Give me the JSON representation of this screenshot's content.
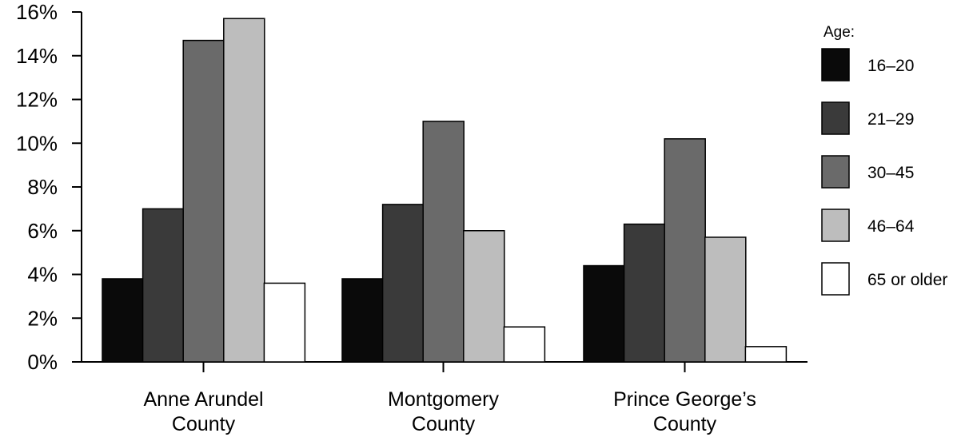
{
  "chart_data": {
    "type": "bar",
    "ylim": [
      0,
      16
    ],
    "yticks": [
      "0%",
      "2%",
      "4%",
      "6%",
      "8%",
      "10%",
      "12%",
      "14%",
      "16%"
    ],
    "categories": [
      [
        "Anne Arundel",
        "County"
      ],
      [
        "Montgomery",
        "County"
      ],
      [
        "Prince George’s",
        "County"
      ]
    ],
    "legend": {
      "title": "Age:",
      "placement": "right"
    },
    "grid": false,
    "series": [
      {
        "name": "16–20",
        "color": "#0a0a0a",
        "values": [
          3.8,
          3.8,
          4.4
        ]
      },
      {
        "name": "21–29",
        "color": "#3a3a3a",
        "values": [
          7.0,
          7.2,
          6.3
        ]
      },
      {
        "name": "30–45",
        "color": "#6a6a6a",
        "values": [
          14.7,
          11.0,
          10.2
        ]
      },
      {
        "name": "46–64",
        "color": "#bdbdbd",
        "values": [
          15.7,
          6.0,
          5.7
        ]
      },
      {
        "name": "65 or older",
        "color": "#ffffff",
        "values": [
          3.6,
          1.6,
          0.7
        ]
      }
    ]
  }
}
